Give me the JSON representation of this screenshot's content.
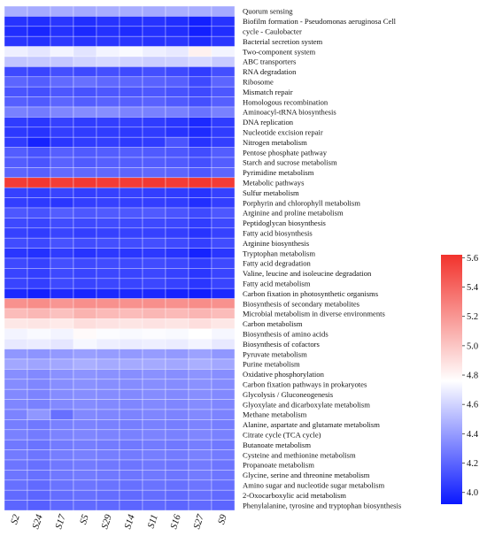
{
  "chart_data": {
    "type": "heatmap",
    "title": "",
    "xlabel": "",
    "ylabel": "",
    "columns": [
      "S2",
      "S24",
      "S17",
      "S5",
      "S29",
      "S14",
      "S11",
      "S16",
      "S27",
      "S9"
    ],
    "rows": [
      "Quorum sensing",
      "Biofilm formation - Pseudomonas aeruginosa Cell",
      "cycle - Caulobacter",
      "Bacterial secretion system",
      "Two-component system",
      "ABC transporters",
      "RNA degradation",
      "Ribosome",
      "Mismatch repair",
      "Homologous recombination",
      "Aminoacyl-tRNA biosynthesis",
      "DNA replication",
      "Nucleotide excision repair",
      "Nitrogen metabolism",
      "Pentose phosphate pathway",
      "Starch and sucrose metabolism",
      "Pyrimidine metabolism",
      "Metabolic pathways",
      "Sulfur metabolism",
      "Porphyrin and chlorophyll metabolism",
      "Arginine and proline metabolism",
      "Peptidoglycan biosynthesis",
      "Fatty acid biosynthesis",
      "Arginine biosynthesis",
      "Tryptophan metabolism",
      "Fatty acid degradation",
      "Valine, leucine and isoleucine degradation",
      "Fatty acid metabolism",
      "Carbon fixation in photosynthetic organisms",
      "Biosynthesis of secondary metabolites",
      "Microbial metabolism in diverse environments",
      "Carbon metabolism",
      "Biosynthesis of amino acids",
      "Biosynthesis of cofactors",
      "Pyruvate metabolism",
      "Purine metabolism",
      "Oxidative phosphorylation",
      "Carbon fixation pathways in prokaryotes",
      "Glycolysis / Gluconeogenesis",
      "Glyoxylate and dicarboxylate metabolism",
      "Methane metabolism",
      "Alanine, aspartate and glutamate metabolism",
      "Citrate cycle (TCA cycle)",
      "Butanoate metabolism",
      "Cysteine and methionine metabolism",
      "Propanoate metabolism",
      "Glycine, serine and threonine metabolism",
      "Amino sugar and nucleotide sugar metabolism",
      "2-Oxocarboxylic acid metabolism",
      "Phenylalanine, tyrosine and tryptophan biosynthesis"
    ],
    "values": [
      [
        4.47,
        4.45,
        4.46,
        4.45,
        4.46,
        4.46,
        4.45,
        4.47,
        4.46,
        4.45
      ],
      [
        4.02,
        4.0,
        4.03,
        4.0,
        4.02,
        4.01,
        4.02,
        4.0,
        3.95,
        4.02
      ],
      [
        4.0,
        3.97,
        4.01,
        3.98,
        4.01,
        3.99,
        4.01,
        4.0,
        3.95,
        4.0
      ],
      [
        4.03,
        4.01,
        4.04,
        4.02,
        4.03,
        4.03,
        4.02,
        4.03,
        3.99,
        4.03
      ],
      [
        4.7,
        4.67,
        4.72,
        4.66,
        4.72,
        4.74,
        4.7,
        4.68,
        4.82,
        4.72
      ],
      [
        4.55,
        4.56,
        4.56,
        4.6,
        4.62,
        4.6,
        4.58,
        4.59,
        4.62,
        4.57
      ],
      [
        4.1,
        4.08,
        4.12,
        4.1,
        4.12,
        4.1,
        4.12,
        4.1,
        4.05,
        4.12
      ],
      [
        4.2,
        4.17,
        4.22,
        4.24,
        4.21,
        4.2,
        4.19,
        4.18,
        4.1,
        4.2
      ],
      [
        4.14,
        4.12,
        4.15,
        4.13,
        4.15,
        4.14,
        4.15,
        4.13,
        4.1,
        4.15
      ],
      [
        4.18,
        4.16,
        4.2,
        4.17,
        4.19,
        4.18,
        4.19,
        4.16,
        4.12,
        4.18
      ],
      [
        4.3,
        4.28,
        4.32,
        4.34,
        4.35,
        4.31,
        4.3,
        4.3,
        4.25,
        4.3
      ],
      [
        4.05,
        4.03,
        4.07,
        4.05,
        4.06,
        4.06,
        4.05,
        4.03,
        3.98,
        4.05
      ],
      [
        4.04,
        4.02,
        4.06,
        4.05,
        4.05,
        4.04,
        4.05,
        4.02,
        3.99,
        4.05
      ],
      [
        4.05,
        3.96,
        4.03,
        4.05,
        4.06,
        4.04,
        4.05,
        4.14,
        4.02,
        4.06
      ],
      [
        4.17,
        4.13,
        4.18,
        4.16,
        4.17,
        4.17,
        4.16,
        4.15,
        4.11,
        4.17
      ],
      [
        4.17,
        4.14,
        4.19,
        4.16,
        4.18,
        4.17,
        4.17,
        4.16,
        4.12,
        4.17
      ],
      [
        4.2,
        4.18,
        4.22,
        4.21,
        4.21,
        4.2,
        4.21,
        4.2,
        4.15,
        4.2
      ],
      [
        5.58,
        5.6,
        5.57,
        5.59,
        5.58,
        5.58,
        5.59,
        5.58,
        5.6,
        5.58
      ],
      [
        4.07,
        4.05,
        4.08,
        4.06,
        4.07,
        4.07,
        4.06,
        4.05,
        4.02,
        4.07
      ],
      [
        4.06,
        4.04,
        4.03,
        4.06,
        4.07,
        4.06,
        4.06,
        4.05,
        4.0,
        4.06
      ],
      [
        4.15,
        4.13,
        4.17,
        4.15,
        4.16,
        4.15,
        4.16,
        4.14,
        4.1,
        4.15
      ],
      [
        4.1,
        4.08,
        4.11,
        4.1,
        4.11,
        4.1,
        4.1,
        4.09,
        4.05,
        4.1
      ],
      [
        4.07,
        4.05,
        4.08,
        4.06,
        4.07,
        4.07,
        4.07,
        4.06,
        4.02,
        4.07
      ],
      [
        4.11,
        4.09,
        4.13,
        4.11,
        4.12,
        4.11,
        4.12,
        4.1,
        4.06,
        4.11
      ],
      [
        4.03,
        4.01,
        4.05,
        4.02,
        4.04,
        4.03,
        4.04,
        4.02,
        3.96,
        4.03
      ],
      [
        4.1,
        4.07,
        4.12,
        4.1,
        4.11,
        4.1,
        4.11,
        4.09,
        4.05,
        4.1
      ],
      [
        4.08,
        4.06,
        4.1,
        4.08,
        4.09,
        4.08,
        4.09,
        4.07,
        4.03,
        4.08
      ],
      [
        4.08,
        4.06,
        4.1,
        4.08,
        4.09,
        4.08,
        4.09,
        4.07,
        4.03,
        4.08
      ],
      [
        3.98,
        3.95,
        3.99,
        3.97,
        3.98,
        3.98,
        3.98,
        3.96,
        3.94,
        3.98
      ],
      [
        5.22,
        5.24,
        5.2,
        5.23,
        5.22,
        5.22,
        5.23,
        5.22,
        5.24,
        5.22
      ],
      [
        5.04,
        5.06,
        5.02,
        5.08,
        5.05,
        5.04,
        5.06,
        5.05,
        5.07,
        5.04
      ],
      [
        4.86,
        4.87,
        4.85,
        4.9,
        4.88,
        4.87,
        4.88,
        4.87,
        4.9,
        4.86
      ],
      [
        4.72,
        4.74,
        4.72,
        4.78,
        4.75,
        4.74,
        4.75,
        4.74,
        4.76,
        4.73
      ],
      [
        4.68,
        4.69,
        4.67,
        4.73,
        4.7,
        4.69,
        4.7,
        4.69,
        4.72,
        4.68
      ],
      [
        4.38,
        4.37,
        4.39,
        4.41,
        4.4,
        4.39,
        4.4,
        4.39,
        4.42,
        4.38
      ],
      [
        4.44,
        4.43,
        4.44,
        4.47,
        4.45,
        4.45,
        4.45,
        4.44,
        4.47,
        4.44
      ],
      [
        4.35,
        4.33,
        4.36,
        4.37,
        4.36,
        4.35,
        4.36,
        4.35,
        4.37,
        4.35
      ],
      [
        4.34,
        4.32,
        4.35,
        4.36,
        4.35,
        4.34,
        4.35,
        4.34,
        4.36,
        4.34
      ],
      [
        4.33,
        4.31,
        4.34,
        4.35,
        4.34,
        4.33,
        4.34,
        4.33,
        4.35,
        4.33
      ],
      [
        4.32,
        4.3,
        4.33,
        4.34,
        4.33,
        4.32,
        4.33,
        4.32,
        4.34,
        4.32
      ],
      [
        4.31,
        4.38,
        4.24,
        4.33,
        4.32,
        4.31,
        4.32,
        4.31,
        4.33,
        4.31
      ],
      [
        4.29,
        4.27,
        4.3,
        4.31,
        4.3,
        4.29,
        4.3,
        4.29,
        4.31,
        4.29
      ],
      [
        4.3,
        4.28,
        4.31,
        4.32,
        4.31,
        4.3,
        4.31,
        4.3,
        4.32,
        4.3
      ],
      [
        4.27,
        4.25,
        4.28,
        4.29,
        4.28,
        4.27,
        4.28,
        4.27,
        4.29,
        4.27
      ],
      [
        4.28,
        4.26,
        4.29,
        4.3,
        4.29,
        4.28,
        4.29,
        4.28,
        4.3,
        4.28
      ],
      [
        4.26,
        4.24,
        4.27,
        4.28,
        4.27,
        4.26,
        4.27,
        4.26,
        4.28,
        4.26
      ],
      [
        4.26,
        4.24,
        4.27,
        4.28,
        4.27,
        4.26,
        4.27,
        4.26,
        4.28,
        4.26
      ],
      [
        4.24,
        4.22,
        4.25,
        4.26,
        4.25,
        4.24,
        4.25,
        4.24,
        4.26,
        4.24
      ],
      [
        4.22,
        4.2,
        4.23,
        4.24,
        4.23,
        4.22,
        4.23,
        4.22,
        4.24,
        4.22
      ],
      [
        4.2,
        4.18,
        4.21,
        4.22,
        4.21,
        4.2,
        4.21,
        4.2,
        4.22,
        4.2
      ]
    ],
    "colorbar": {
      "range": [
        3.92,
        5.62
      ],
      "ticks": [
        "4.0",
        "4.2",
        "4.4",
        "4.6",
        "4.8",
        "5.0",
        "5.2",
        "5.4",
        "5.6"
      ],
      "tick_values": [
        4.0,
        4.2,
        4.4,
        4.6,
        4.8,
        5.0,
        5.2,
        5.4,
        5.6
      ],
      "colors": {
        "low": "#0a18ff",
        "mid": "#ffffff",
        "high": "#f2322c"
      },
      "mid_value": 4.76
    },
    "grid": true
  }
}
